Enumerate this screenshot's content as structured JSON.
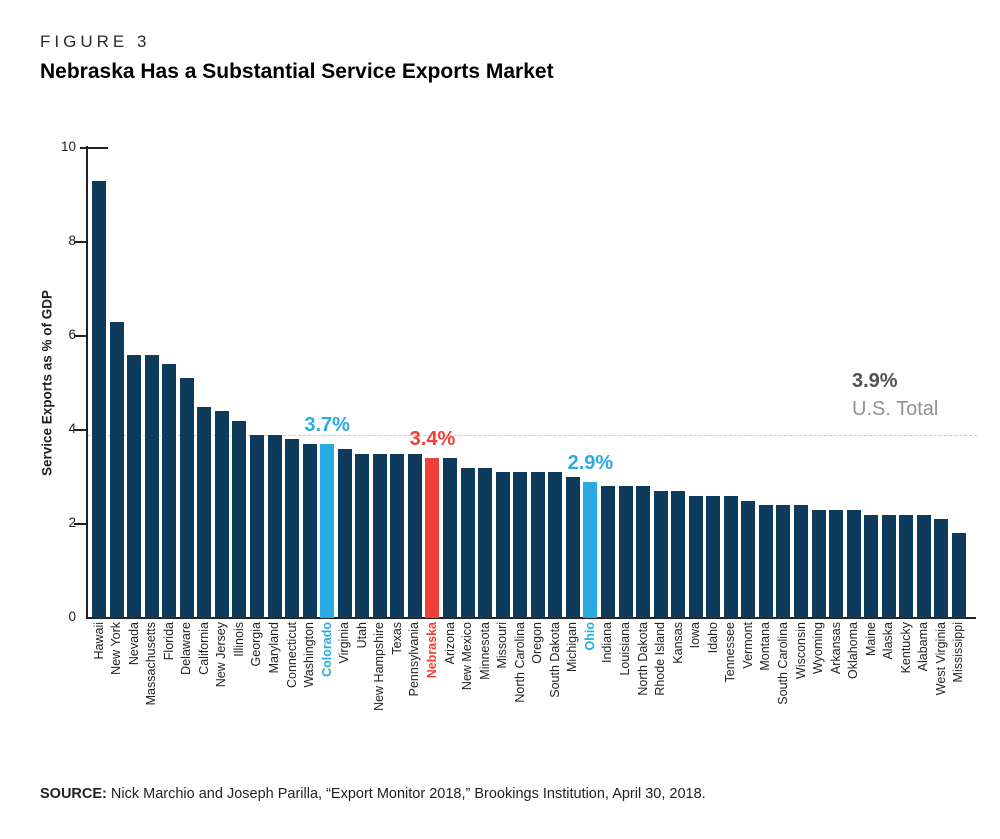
{
  "figure": {
    "label": "FIGURE 3"
  },
  "source": {
    "prefix": "SOURCE:",
    "text": " Nick Marchio and Joseph Parilla, “Export Monitor 2018,” Brookings Institution, April 30, 2018."
  },
  "colors": {
    "bar": "#0e3a5c",
    "highlight_blue": "#29abe2",
    "highlight_red": "#ee4037",
    "reference_line": "#c6c8ca",
    "us_total_value": "#515254",
    "us_total_label": "#919396",
    "axis": "#231f20"
  },
  "chart_data": {
    "type": "bar",
    "title": "Nebraska Has a Substantial Service Exports Market",
    "xlabel": "",
    "ylabel": "Service Exports as % of GDP",
    "ylim": [
      0,
      10
    ],
    "yticks": [
      0,
      2,
      4,
      6,
      8,
      10
    ],
    "grid": false,
    "reference_line": {
      "value": 3.9,
      "label_value": "3.9%",
      "label_text": "U.S. Total",
      "style": "dashed"
    },
    "categories": [
      "Hawaii",
      "New York",
      "Nevada",
      "Massachusetts",
      "Florida",
      "Delaware",
      "California",
      "New Jersey",
      "Illinois",
      "Georgia",
      "Maryland",
      "Connecticut",
      "Washington",
      "Colorado",
      "Virginia",
      "Utah",
      "New Hampshire",
      "Texas",
      "Pennsylvania",
      "Nebraska",
      "Arizona",
      "New Mexico",
      "Minnesota",
      "Missouri",
      "North Carolina",
      "Oregon",
      "South Dakota",
      "Michigan",
      "Ohio",
      "Indiana",
      "Louisiana",
      "North Dakota",
      "Rhode Island",
      "Kansas",
      "Iowa",
      "Idaho",
      "Tennessee",
      "Vermont",
      "Montana",
      "South Carolina",
      "Wisconsin",
      "Wyoming",
      "Arkansas",
      "Oklahoma",
      "Maine",
      "Alaska",
      "Kentucky",
      "Alabama",
      "West Virginia",
      "Mississippi"
    ],
    "values": [
      9.3,
      6.3,
      5.6,
      5.6,
      5.4,
      5.1,
      4.5,
      4.4,
      4.2,
      3.9,
      3.9,
      3.8,
      3.7,
      3.7,
      3.6,
      3.5,
      3.5,
      3.5,
      3.5,
      3.4,
      3.4,
      3.2,
      3.2,
      3.1,
      3.1,
      3.1,
      3.1,
      3.0,
      2.9,
      2.8,
      2.8,
      2.8,
      2.7,
      2.7,
      2.6,
      2.6,
      2.6,
      2.5,
      2.4,
      2.4,
      2.4,
      2.3,
      2.3,
      2.3,
      2.2,
      2.2,
      2.2,
      2.2,
      2.1,
      1.8
    ],
    "highlights": [
      {
        "state": "Colorado",
        "index": 13,
        "color": "#29abe2",
        "annotation": "3.7%"
      },
      {
        "state": "Nebraska",
        "index": 19,
        "color": "#ee4037",
        "annotation": "3.4%"
      },
      {
        "state": "Ohio",
        "index": 28,
        "color": "#29abe2",
        "annotation": "2.9%"
      }
    ]
  }
}
